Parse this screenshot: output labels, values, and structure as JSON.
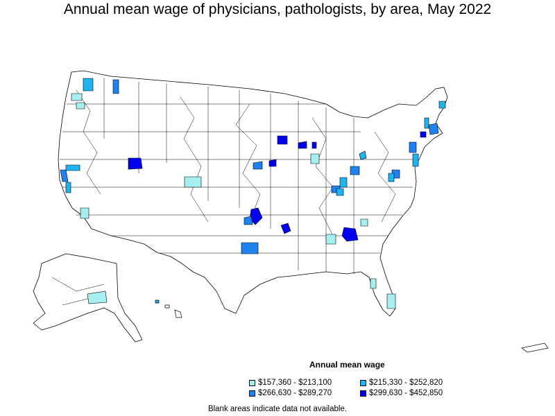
{
  "title": "Annual mean wage of physicians, pathologists, by area, May 2022",
  "legend": {
    "title": "Annual mean wage",
    "items": [
      {
        "label": "$157,360 - $213,100",
        "color": "#a6eef0"
      },
      {
        "label": "$215,330 - $252,820",
        "color": "#1eb4f0"
      },
      {
        "label": "$266,630 - $289,270",
        "color": "#1e82f0"
      },
      {
        "label": "$299,630 - $452,850",
        "color": "#0000f0"
      }
    ]
  },
  "footnote": "Blank areas indicate data not available.",
  "colors": {
    "border": "#000000",
    "land": "#ffffff"
  }
}
